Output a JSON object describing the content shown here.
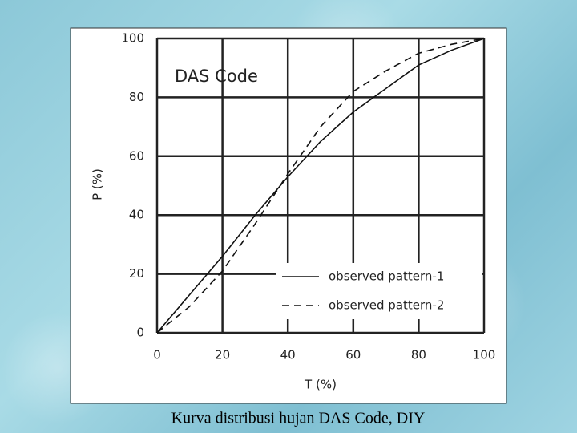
{
  "chart_data": {
    "type": "line",
    "title": "DAS Code",
    "x_label": "T (%)",
    "y_label": "P (%)",
    "caption": "Kurva distribusi hujan DAS Code, DIY",
    "x": [
      0,
      10,
      20,
      30,
      40,
      50,
      60,
      70,
      80,
      90,
      100
    ],
    "series": [
      {
        "name": "observed pattern-1",
        "color": "#111111",
        "dash": "solid",
        "values": [
          0,
          13,
          26,
          40,
          53,
          65,
          75,
          83,
          91,
          96,
          100
        ]
      },
      {
        "name": "observed pattern-2",
        "color": "#111111",
        "dash": "dashed",
        "values": [
          0,
          9,
          21,
          37,
          54,
          70,
          82,
          89,
          95,
          98,
          100
        ]
      }
    ],
    "xlim": [
      0,
      100
    ],
    "ylim": [
      0,
      100
    ],
    "xticks": [
      0,
      20,
      40,
      60,
      80,
      100
    ],
    "yticks": [
      0,
      20,
      40,
      60,
      80,
      100
    ],
    "grid": true
  }
}
